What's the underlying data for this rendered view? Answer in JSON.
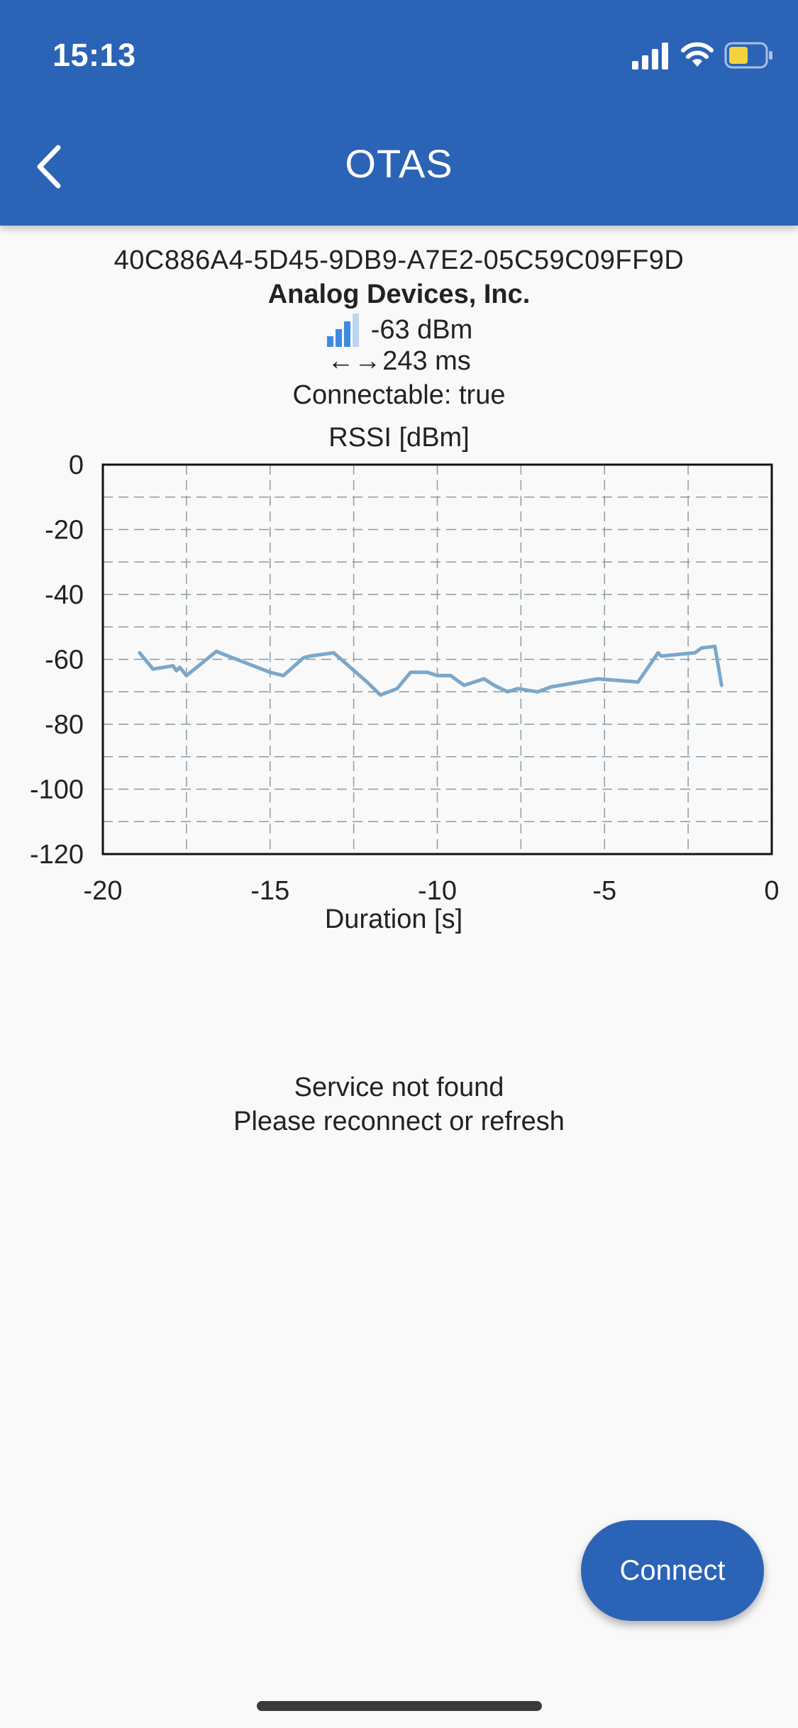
{
  "status_bar": {
    "time": "15:13",
    "icons": [
      "cellular-signal-icon",
      "wifi-icon",
      "battery-icon"
    ],
    "battery_color": "#f2d33b"
  },
  "header": {
    "title": "OTAS",
    "back_icon": "chevron-left-icon",
    "background": "#2b63b6"
  },
  "device": {
    "uuid": "40C886A4-5D45-9DB9-A7E2-05C59C09FF9D",
    "manufacturer": "Analog Devices, Inc.",
    "rssi": "-63 dBm",
    "interval_arrows": "←→",
    "interval": "243 ms",
    "connectable": "Connectable: true"
  },
  "chart_data": {
    "type": "line",
    "title": "RSSI [dBm]",
    "xlabel": "Duration [s]",
    "ylabel": "",
    "xlim": [
      -20,
      0
    ],
    "ylim": [
      -120,
      0
    ],
    "x_ticks": [
      "-20",
      "-15",
      "-10",
      "-5",
      "0"
    ],
    "y_ticks": [
      "0",
      "-20",
      "-40",
      "-60",
      "-80",
      "-100",
      "-120"
    ],
    "grid": true,
    "line_color": "#7ba7c9",
    "series": [
      {
        "x": [
          -18.9,
          -18.5,
          -17.9,
          -17.8,
          -17.7,
          -17.5,
          -16.6,
          -16.5,
          -15.0,
          -14.6,
          -14.0,
          -13.8,
          -13.1,
          -12.1,
          -11.7,
          -11.2,
          -10.8,
          -10.3,
          -10.0,
          -9.6,
          -9.2,
          -8.6,
          -8.3,
          -7.9,
          -7.6,
          -7.0,
          -6.6,
          -5.2,
          -4.0,
          -3.4,
          -3.3,
          -2.3,
          -2.1,
          -1.7,
          -1.5
        ],
        "y": [
          -58,
          -63,
          -62,
          -63.5,
          -62.5,
          -65,
          -57.5,
          -58,
          -64,
          -65,
          -59.5,
          -59,
          -58,
          -67,
          -71,
          -69,
          -64,
          -64,
          -65,
          -65,
          -68,
          -66,
          -68,
          -70,
          -69,
          -70,
          -68.5,
          -66,
          -67,
          -58,
          -59,
          -58,
          -56.5,
          -56,
          -68
        ]
      }
    ]
  },
  "messages": {
    "line1": "Service not found",
    "line2": "Please reconnect or refresh"
  },
  "actions": {
    "connect_label": "Connect"
  }
}
